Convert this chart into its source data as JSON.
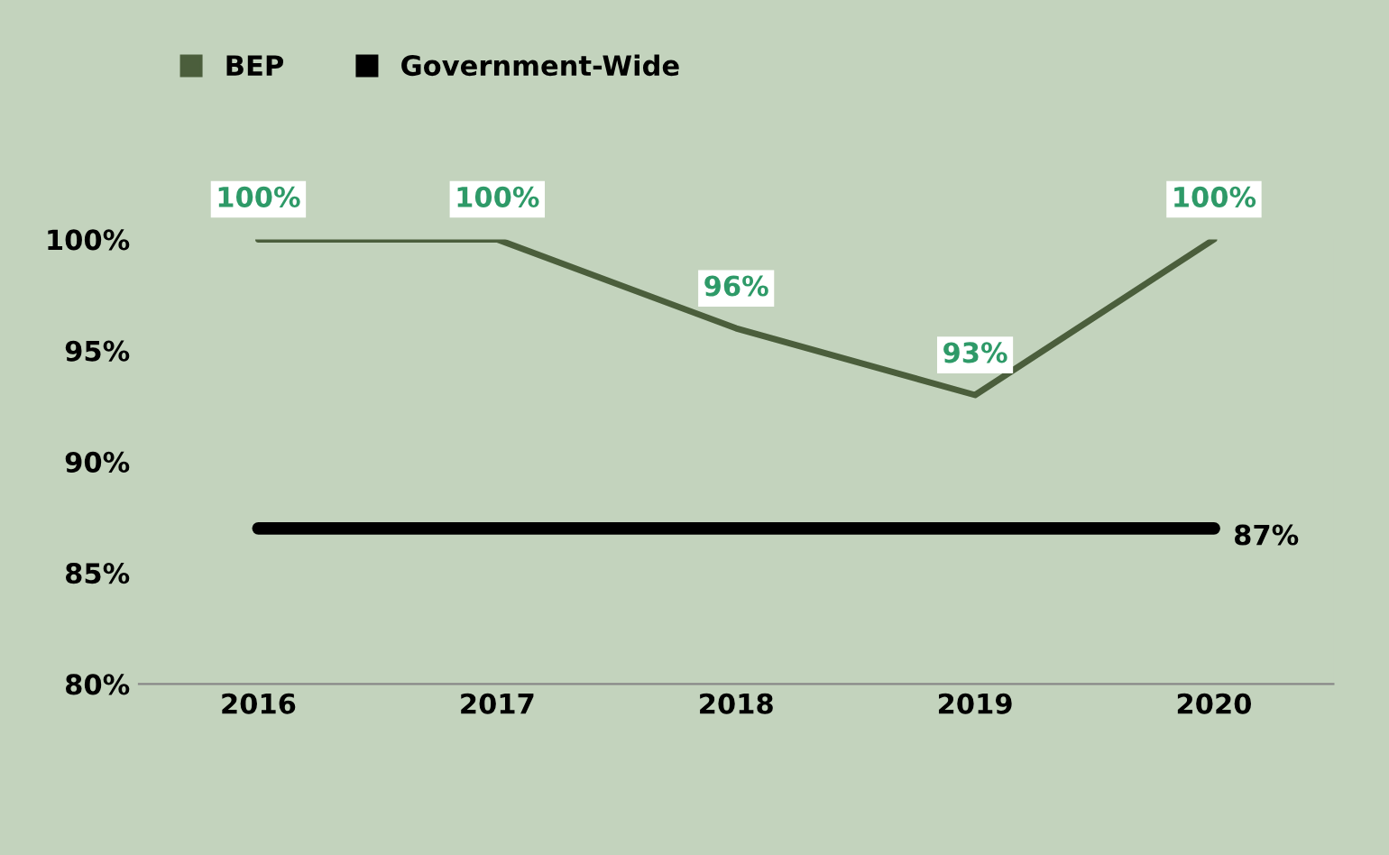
{
  "chart_data": {
    "type": "line",
    "categories": [
      "2016",
      "2017",
      "2018",
      "2019",
      "2020"
    ],
    "series": [
      {
        "name": "BEP",
        "color": "#4b5e3c",
        "values": [
          100,
          100,
          96,
          93,
          100
        ],
        "value_labels": [
          "100%",
          "100%",
          "96%",
          "93%",
          "100%"
        ]
      },
      {
        "name": "Government-Wide",
        "color": "#000000",
        "values": [
          87,
          87,
          87,
          87,
          87
        ],
        "value_labels": [
          null,
          null,
          null,
          null,
          "87%"
        ]
      }
    ],
    "ylim": [
      80,
      100
    ],
    "yticks": [
      {
        "value": 80,
        "label": "80%"
      },
      {
        "value": 85,
        "label": "85%"
      },
      {
        "value": 90,
        "label": "90%"
      },
      {
        "value": 95,
        "label": "95%"
      },
      {
        "value": 100,
        "label": "100%"
      }
    ],
    "grid": false,
    "legend": "top left",
    "marker": "none",
    "line_style": "solid"
  }
}
